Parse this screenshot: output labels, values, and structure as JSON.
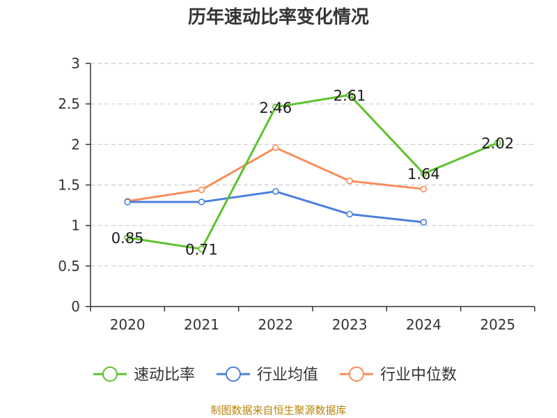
{
  "chart_data": {
    "type": "line",
    "title": "历年速动比率变化情况",
    "categories": [
      "2020",
      "2021",
      "2022",
      "2023",
      "2024",
      "2025"
    ],
    "y_ticks": [
      "0",
      "0.5",
      "1",
      "1.5",
      "2",
      "2.5",
      "3"
    ],
    "ylim": [
      0,
      3
    ],
    "grid": true,
    "legend_position": "bottom",
    "series": [
      {
        "name": "速动比率",
        "color": "#5dc22a",
        "values": [
          0.85,
          0.71,
          2.46,
          2.61,
          1.64,
          2.02
        ],
        "labels": [
          "0.85",
          "0.71",
          "2.46",
          "2.61",
          "1.64",
          "2.02"
        ]
      },
      {
        "name": "行业均值",
        "color": "#4a7fdd",
        "values": [
          1.29,
          1.29,
          1.42,
          1.14,
          1.04,
          null
        ]
      },
      {
        "name": "行业中位数",
        "color": "#f88d5a",
        "values": [
          1.3,
          1.44,
          1.96,
          1.55,
          1.45,
          null
        ]
      }
    ]
  },
  "footer": {
    "source": "制图数据来自恒生聚源数据库"
  },
  "colors": {
    "axis": "#333333",
    "grid": "#cccccc",
    "source_text": "#b8860b"
  }
}
